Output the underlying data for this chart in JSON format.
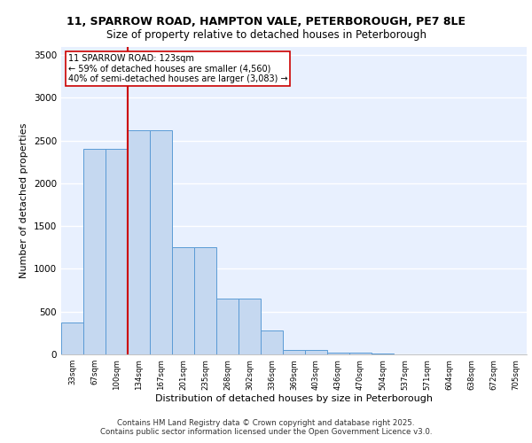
{
  "title_line1": "11, SPARROW ROAD, HAMPTON VALE, PETERBOROUGH, PE7 8LE",
  "title_line2": "Size of property relative to detached houses in Peterborough",
  "xlabel": "Distribution of detached houses by size in Peterborough",
  "ylabel": "Number of detached properties",
  "categories": [
    "33sqm",
    "67sqm",
    "100sqm",
    "134sqm",
    "167sqm",
    "201sqm",
    "235sqm",
    "268sqm",
    "302sqm",
    "336sqm",
    "369sqm",
    "403sqm",
    "436sqm",
    "470sqm",
    "504sqm",
    "537sqm",
    "571sqm",
    "604sqm",
    "638sqm",
    "672sqm",
    "705sqm"
  ],
  "values": [
    375,
    2400,
    2400,
    2625,
    2625,
    1250,
    1250,
    650,
    650,
    275,
    50,
    50,
    20,
    20,
    10,
    5,
    5,
    2,
    2,
    1,
    1
  ],
  "bar_color": "#c5d8f0",
  "bar_edge_color": "#5b9bd5",
  "background_color": "#e8f0fe",
  "grid_color": "#ffffff",
  "vline_x_index": 2.5,
  "vline_color": "#cc0000",
  "annotation_text": "11 SPARROW ROAD: 123sqm\n← 59% of detached houses are smaller (4,560)\n40% of semi-detached houses are larger (3,083) →",
  "annotation_box_color": "white",
  "annotation_box_edge": "#cc0000",
  "ylim": [
    0,
    3600
  ],
  "yticks": [
    0,
    500,
    1000,
    1500,
    2000,
    2500,
    3000,
    3500
  ],
  "footer_line1": "Contains HM Land Registry data © Crown copyright and database right 2025.",
  "footer_line2": "Contains public sector information licensed under the Open Government Licence v3.0."
}
